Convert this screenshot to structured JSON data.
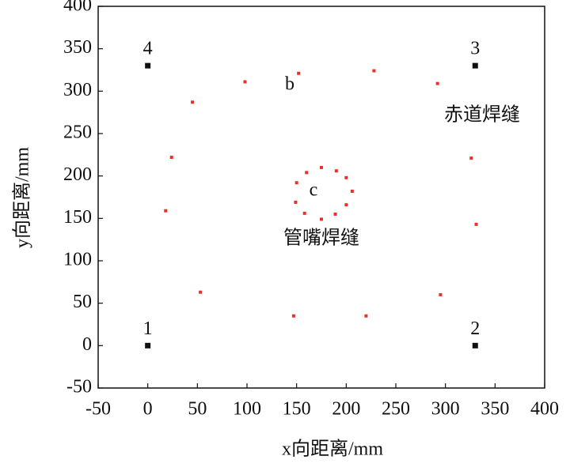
{
  "chart_data": {
    "type": "scatter",
    "x_label": "x向距离/mm",
    "y_label": "y向距离/mm",
    "xlim": [
      -50,
      400
    ],
    "ylim": [
      -50,
      400
    ],
    "xticks": [
      -50,
      0,
      50,
      100,
      150,
      200,
      250,
      300,
      350,
      400
    ],
    "yticks": [
      -50,
      0,
      50,
      100,
      150,
      200,
      250,
      300,
      350,
      400
    ],
    "annotations": [
      "b",
      "c",
      "赤道焊缝",
      "管嘴焊缝"
    ],
    "series": [
      {
        "color": "#111111",
        "marker": "square",
        "x": [
          0,
          330,
          330,
          0
        ],
        "y": [
          0,
          0,
          330,
          330
        ],
        "point_labels": [
          "1",
          "2",
          "3",
          "4"
        ]
      },
      {
        "color": "#e8312a",
        "marker": "small",
        "x": [
          98,
          152,
          228,
          292,
          45,
          24,
          326,
          18,
          331,
          53,
          295,
          147,
          220
        ],
        "y": [
          311,
          321,
          324,
          309,
          287,
          222,
          221,
          159,
          143,
          63,
          60,
          35,
          35
        ]
      },
      {
        "color": "#e8312a",
        "marker": "small",
        "x": [
          175,
          190,
          160,
          200,
          150,
          206,
          149,
          200,
          158,
          189,
          175
        ],
        "y": [
          210,
          206,
          204,
          198,
          192,
          182,
          169,
          166,
          156,
          155,
          149
        ]
      }
    ]
  }
}
